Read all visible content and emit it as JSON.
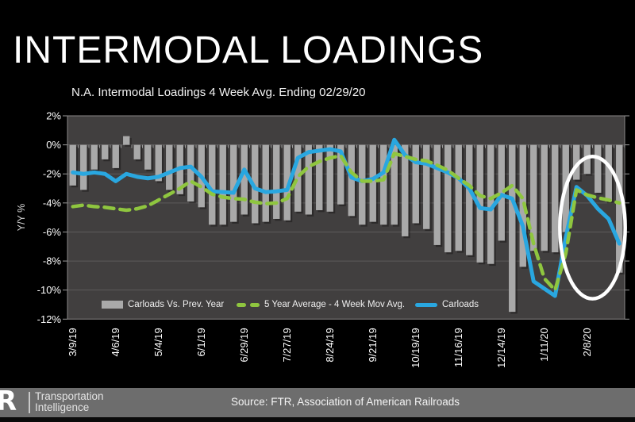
{
  "title": "INTERMODAL LOADINGS",
  "subtitle": "N.A. Intermodal Loadings 4 Week Avg. Ending 02/29/20",
  "colors": {
    "page_bg": "#000000",
    "plot_bg": "#413f3f",
    "gridline": "#5d5b5b",
    "axis_edge": "#8a8888",
    "tick": "#9a9a9a",
    "text": "#ffffff",
    "footer_bg": "#6d6d6d",
    "highlight": "#ffffff"
  },
  "chart_data": {
    "type": "bar",
    "title": "N.A. Intermodal Loadings 4 Week Avg. Ending 02/29/20",
    "xlabel": "",
    "ylabel": "Y/Y %",
    "ylim": [
      -12,
      2
    ],
    "ytick_step": 2,
    "grid": "horizontal",
    "legend_position": "bottom-inside",
    "x_label_every": 4,
    "x": [
      "3/9/19",
      "3/16/19",
      "3/23/19",
      "3/30/19",
      "4/6/19",
      "4/13/19",
      "4/20/19",
      "4/27/19",
      "5/4/19",
      "5/11/19",
      "5/18/19",
      "5/25/19",
      "6/1/19",
      "6/8/19",
      "6/15/19",
      "6/22/19",
      "6/29/19",
      "7/6/19",
      "7/13/19",
      "7/20/19",
      "7/27/19",
      "8/3/19",
      "8/10/19",
      "8/17/19",
      "8/24/19",
      "8/31/19",
      "9/7/19",
      "9/14/19",
      "9/21/19",
      "9/28/19",
      "10/5/19",
      "10/12/19",
      "10/19/19",
      "10/26/19",
      "11/2/19",
      "11/9/19",
      "11/16/19",
      "11/23/19",
      "11/30/19",
      "12/7/19",
      "12/14/19",
      "12/21/19",
      "12/28/19",
      "1/4/20",
      "1/11/20",
      "1/18/20",
      "1/25/20",
      "2/1/20",
      "2/8/20",
      "2/15/20",
      "2/22/20",
      "2/29/20"
    ],
    "series": [
      {
        "name": "Carloads Vs. Prev. Year",
        "type": "bar",
        "color": "#a9a9a9",
        "values": [
          -2.8,
          -3.1,
          -1.7,
          -1.0,
          -1.6,
          0.6,
          -1.0,
          -1.7,
          -2.5,
          -3.1,
          -3.4,
          -3.9,
          -4.3,
          -5.5,
          -5.5,
          -5.3,
          -4.8,
          -5.4,
          -5.3,
          -5.1,
          -5.2,
          -4.6,
          -4.8,
          -4.5,
          -4.6,
          -4.1,
          -4.9,
          -5.5,
          -5.3,
          -5.5,
          -5.5,
          -6.3,
          -5.4,
          -5.8,
          -6.9,
          -7.4,
          -7.3,
          -7.6,
          -8.1,
          -8.2,
          -6.6,
          -11.5,
          -8.4,
          -7.3,
          -7.3,
          -7.4,
          -6.0,
          -2.4,
          -2.0,
          -3.3,
          -3.9,
          -8.8
        ]
      },
      {
        "name": "5 Year Average - 4 Week Mov Avg.",
        "type": "line-dashed",
        "color": "#8fc63f",
        "values": [
          -4.25,
          -4.15,
          -4.25,
          -4.3,
          -4.4,
          -4.5,
          -4.4,
          -4.2,
          -3.8,
          -3.4,
          -3.0,
          -2.5,
          -2.9,
          -3.4,
          -3.6,
          -3.7,
          -3.75,
          -3.95,
          -4.05,
          -4.0,
          -3.7,
          -2.2,
          -1.5,
          -1.15,
          -0.9,
          -0.75,
          -1.9,
          -2.5,
          -2.5,
          -2.4,
          -0.6,
          -0.8,
          -1.0,
          -1.1,
          -1.4,
          -1.75,
          -2.3,
          -2.8,
          -3.5,
          -3.7,
          -3.3,
          -2.8,
          -3.7,
          -6.8,
          -9.2,
          -10.0,
          -7.5,
          -3.1,
          -3.45,
          -3.65,
          -3.8,
          -4.0
        ]
      },
      {
        "name": "Carloads",
        "type": "line",
        "color": "#29a7e0",
        "values": [
          -1.9,
          -2.0,
          -1.9,
          -2.0,
          -2.5,
          -2.0,
          -2.2,
          -2.3,
          -2.2,
          -1.9,
          -1.6,
          -1.5,
          -2.2,
          -3.2,
          -3.25,
          -3.3,
          -1.7,
          -3.0,
          -3.25,
          -3.2,
          -3.1,
          -0.9,
          -0.5,
          -0.4,
          -0.3,
          -0.45,
          -2.25,
          -2.5,
          -2.35,
          -1.9,
          0.35,
          -0.7,
          -1.2,
          -1.3,
          -1.6,
          -1.9,
          -2.3,
          -3.0,
          -4.35,
          -4.45,
          -3.45,
          -3.7,
          -5.6,
          -9.4,
          -9.9,
          -10.4,
          -6.4,
          -2.9,
          -3.5,
          -4.4,
          -5.1,
          -6.8
        ]
      }
    ],
    "highlight": {
      "shape": "ellipse",
      "x_range": [
        "1/25/20",
        "2/29/20"
      ],
      "y_range": [
        -0.8,
        -10.6
      ],
      "color": "#ffffff"
    }
  },
  "footer": {
    "logo_text": "R",
    "brand_line1": "Transportation",
    "brand_line2": "Intelligence",
    "source": "Source: FTR, Association of American Railroads"
  }
}
